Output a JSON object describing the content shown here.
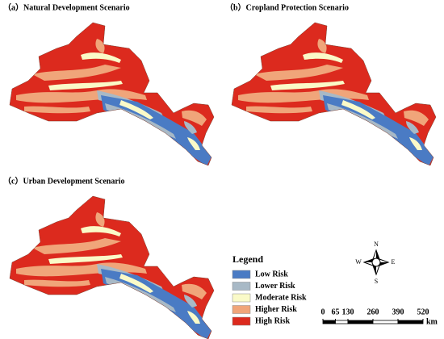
{
  "panels": [
    {
      "label": "（a）Natural Development Scenario"
    },
    {
      "label": "（b）Cropland Protection Scenario"
    },
    {
      "label": "（c）Urban Development Scenario"
    }
  ],
  "legend": {
    "title": "Legend",
    "items": [
      {
        "label": "Low Risk",
        "color": "#4a7bc4"
      },
      {
        "label": "Lower Risk",
        "color": "#a8b9c6"
      },
      {
        "label": "Moderate Risk",
        "color": "#fafac8"
      },
      {
        "label": "Higher Risk",
        "color": "#f0a57a"
      },
      {
        "label": "High Risk",
        "color": "#dc2a1e"
      }
    ]
  },
  "compass": {
    "n": "N",
    "s": "S",
    "e": "E",
    "w": "W"
  },
  "scale_bar": {
    "ticks": [
      0,
      65,
      130,
      260,
      390,
      520
    ],
    "unit": "km"
  }
}
